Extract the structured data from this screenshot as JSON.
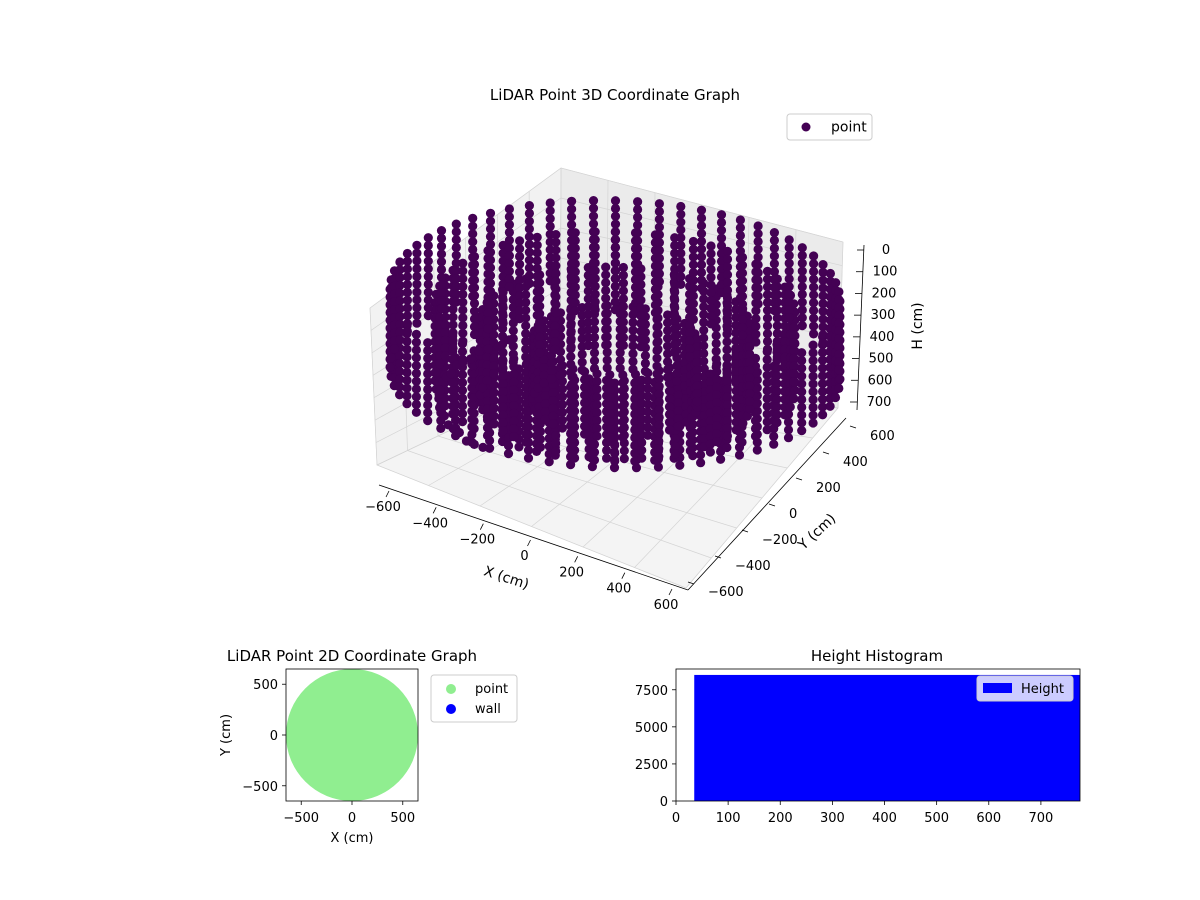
{
  "chart_data": [
    {
      "type": "scatter3d",
      "title": "LiDAR Point 3D Coordinate Graph",
      "xlabel": "X (cm)",
      "ylabel": "Y (cm)",
      "zlabel": "H (cm)",
      "xlim": [
        -650,
        650
      ],
      "ylim": [
        -650,
        650
      ],
      "zlim": [
        780,
        0
      ],
      "zaxis_inverted": true,
      "xticks": [
        "−600",
        "−400",
        "−200",
        "0",
        "200",
        "400",
        "600"
      ],
      "yticks": [
        "−600",
        "−400",
        "−200",
        "0",
        "200",
        "400",
        "600"
      ],
      "zticks": [
        "0",
        "100",
        "200",
        "300",
        "400",
        "500",
        "600",
        "700"
      ],
      "legend": {
        "position": "upper right",
        "entries": [
          {
            "label": "point",
            "color": "#440154"
          }
        ]
      },
      "series": [
        {
          "name": "point",
          "color": "#440154",
          "description_points": {
            "rings": [
              {
                "radius": 600,
                "h_from": 240,
                "h_to": 620
              },
              {
                "radius": 480,
                "h_from": 300,
                "h_to": 700
              },
              {
                "radius": 360,
                "h_from": 380,
                "h_to": 760
              },
              {
                "radius": 220,
                "h_from": 460,
                "h_to": 770
              }
            ],
            "columns_per_ring": 64
          }
        }
      ],
      "grid": true
    },
    {
      "type": "scatter",
      "title": "LiDAR Point 2D Coordinate Graph",
      "xlabel": "X (cm)",
      "ylabel": "Y (cm)",
      "xlim": [
        -650,
        650
      ],
      "ylim": [
        -650,
        650
      ],
      "xticks": [
        "−500",
        "0",
        "500"
      ],
      "yticks": [
        "−500",
        "0",
        "500"
      ],
      "legend": {
        "position": "outside right",
        "entries": [
          {
            "label": "point",
            "color": "#90ee90"
          },
          {
            "label": "wall",
            "color": "#0000ff"
          }
        ]
      },
      "series": [
        {
          "name": "point",
          "color": "#90ee90",
          "disc_radius": 650
        },
        {
          "name": "wall",
          "color": "#0000ff",
          "disc_radius": 0
        }
      ]
    },
    {
      "type": "bar",
      "title": "Height Histogram",
      "xlim": [
        0,
        775
      ],
      "ylim": [
        0,
        8900
      ],
      "xticks": [
        "0",
        "100",
        "200",
        "300",
        "400",
        "500",
        "600",
        "700"
      ],
      "yticks": [
        "0",
        "2500",
        "5000",
        "7500"
      ],
      "legend": {
        "position": "upper right",
        "entries": [
          {
            "label": "Height",
            "color": "#0000ff"
          }
        ]
      },
      "series": [
        {
          "name": "Height",
          "color": "#0000ff",
          "bin_from": 35,
          "bin_to": 775,
          "count": 8500
        }
      ]
    }
  ]
}
